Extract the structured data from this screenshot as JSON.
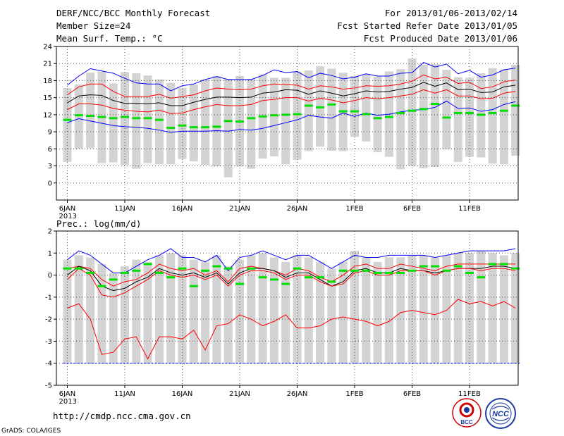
{
  "header": {
    "title": "DERF/NCC/BCC Monthly Forecast",
    "member_size": "Member Size=24",
    "variable": "Mean Surf. Temp.: °C",
    "period": "For 2013/01/06-2013/02/14",
    "started": "Fcst Started Refer Date 2013/01/05",
    "produced": "Fcst Produced Date 2013/01/06"
  },
  "footer": {
    "url": "http://cmdp.ncc.cma.gov.cn",
    "grads": "GrADS: COLA/IGES",
    "logo_bcc": "BCC",
    "logo_ncc": "NCC"
  },
  "colors": {
    "bar": "#d3d3d3",
    "max_line": "#0000ff",
    "red_line": "#ff0000",
    "mean_line": "#000000",
    "green_mark": "#00e000"
  },
  "chart_data": [
    {
      "type": "line",
      "title": "Mean Surf. Temp.: °C",
      "ylim": [
        -3,
        24
      ],
      "yticks": [
        0,
        3,
        6,
        9,
        12,
        15,
        18,
        21,
        24
      ],
      "ytick_labels": [
        "0",
        "3",
        "6",
        "9",
        "12",
        "15",
        "18",
        "21",
        "24"
      ],
      "xtick_days": [
        1,
        6,
        11,
        16,
        21,
        26,
        31,
        36
      ],
      "xtick_labels": [
        "6JAN",
        "11JAN",
        "16JAN",
        "21JAN",
        "26JAN",
        "1FEB",
        "6FEB",
        "11FEB"
      ],
      "year_label": "2013",
      "days": 40,
      "bar_low": [
        3.7,
        6,
        6.1,
        3.5,
        3.6,
        3.2,
        2.5,
        3.5,
        3.3,
        3.3,
        4.2,
        3.8,
        3.2,
        2.9,
        1,
        2.9,
        2.5,
        4.3,
        4.7,
        3.3,
        4.1,
        5.6,
        6.4,
        5.7,
        5.6,
        8.1,
        7.3,
        5.4,
        4.6,
        2.4,
        3,
        2.6,
        2.8,
        5.9,
        3.7,
        4.6,
        4.5,
        3.4,
        3.3,
        4.8
      ],
      "bar_high": [
        16.7,
        17.3,
        19.4,
        19.6,
        17.5,
        19.5,
        19.3,
        18.9,
        18.2,
        17.6,
        16.7,
        17.3,
        18.2,
        18.8,
        18.3,
        18.8,
        18.3,
        19.1,
        18.5,
        18.5,
        19.6,
        19.8,
        20.5,
        20.1,
        19.4,
        18.8,
        19.1,
        18.7,
        19.6,
        20,
        21.9,
        20.8,
        20.9,
        19.9,
        18.6,
        18.5,
        19.3,
        20.2,
        20,
        20.8
      ],
      "series": [
        {
          "name": "ens_max",
          "color": "#0000ff",
          "values": [
            17.2,
            18.8,
            20.1,
            19.7,
            19.3,
            18.4,
            17.6,
            17.4,
            17.4,
            16.2,
            17.1,
            17.4,
            18.2,
            18.7,
            18.2,
            18.2,
            18.2,
            18.9,
            19.9,
            19.4,
            19.6,
            18.5,
            19.3,
            18.9,
            18.3,
            18.6,
            19.2,
            18.8,
            18.8,
            19.3,
            19.4,
            21.2,
            20.4,
            20.9,
            19.2,
            19.8,
            18.6,
            19,
            19.9,
            20.2
          ]
        },
        {
          "name": "upper",
          "color": "#ff0000",
          "values": [
            15.5,
            16.9,
            17.4,
            17.4,
            16.1,
            15.2,
            15.2,
            15.2,
            15.6,
            14.9,
            15.2,
            15.5,
            16.2,
            16.7,
            16.5,
            16.4,
            16.5,
            17.1,
            17.4,
            17.3,
            17.2,
            16.5,
            17.1,
            16.9,
            16.5,
            16.7,
            17.1,
            17,
            17.1,
            17.4,
            17.9,
            19,
            18.3,
            18.6,
            17.5,
            17.7,
            16.6,
            16.9,
            17.8,
            18.1
          ]
        },
        {
          "name": "mean",
          "color": "#000000",
          "values": [
            14.1,
            15.3,
            15.5,
            15.4,
            14.5,
            14,
            14,
            13.9,
            14.1,
            13.6,
            13.6,
            14.2,
            14.7,
            15.1,
            15.1,
            15,
            15.1,
            15.8,
            16,
            16.4,
            16.3,
            15.6,
            16.2,
            15.8,
            15.3,
            15.7,
            16.2,
            16,
            16.1,
            16.5,
            16.8,
            17.7,
            17,
            17.6,
            16.4,
            16.5,
            15.9,
            16,
            16.9,
            17.2
          ]
        },
        {
          "name": "lower",
          "color": "#ff0000",
          "values": [
            12.9,
            13.9,
            13.9,
            13.7,
            13.1,
            12.8,
            12.6,
            12.5,
            12.8,
            12.2,
            12.3,
            12.9,
            13.4,
            13.8,
            13.6,
            13.6,
            13.8,
            14.5,
            14.7,
            15,
            15,
            14.4,
            14.9,
            14.6,
            14.1,
            14.5,
            15,
            14.8,
            15,
            15.3,
            15.6,
            16.4,
            15.8,
            16.4,
            15.3,
            15.3,
            14.8,
            14.9,
            15.8,
            16.1
          ]
        },
        {
          "name": "ens_min",
          "color": "#0000ff",
          "values": [
            10.6,
            11.3,
            10.9,
            10.5,
            10.1,
            9.9,
            9.8,
            9.6,
            9.3,
            8.9,
            9.1,
            9.1,
            9.1,
            9.2,
            9.1,
            9.4,
            9.3,
            9.6,
            10.1,
            10.6,
            11.1,
            11.9,
            11.6,
            11.4,
            12.3,
            11.7,
            12.3,
            11.9,
            12.1,
            12.5,
            12.8,
            12.9,
            13.3,
            14.4,
            13.1,
            13.2,
            12.6,
            12.9,
            13.8,
            14.3
          ]
        },
        {
          "name": "green_marks",
          "color": "#00e000",
          "values": [
            11.1,
            11.9,
            11.8,
            11.6,
            11.4,
            11.6,
            11.4,
            11.4,
            11.1,
            9.7,
            10.1,
            9.8,
            9.8,
            9.9,
            10.9,
            10.8,
            11.4,
            11.7,
            11.9,
            12,
            12.1,
            13.6,
            13.3,
            13.8,
            12.6,
            12.6,
            12.1,
            11.4,
            11.6,
            12.3,
            12.7,
            13,
            13.9,
            11.5,
            12.3,
            12.3,
            12,
            12.3,
            12.7,
            13.6
          ]
        }
      ]
    },
    {
      "type": "line",
      "title": "Prec.: log(mm/d)",
      "ylim": [
        -5,
        2
      ],
      "yticks": [
        -5,
        -4,
        -3,
        -2,
        -1,
        0,
        1,
        2
      ],
      "ytick_labels": [
        "-5",
        "-4",
        "-3",
        "-2",
        "-1",
        "0",
        "1",
        "2"
      ],
      "xtick_days": [
        1,
        6,
        11,
        16,
        21,
        26,
        31,
        36
      ],
      "xtick_labels": [
        "6JAN",
        "11JAN",
        "16JAN",
        "21JAN",
        "26JAN",
        "1FEB",
        "6FEB",
        "11FEB"
      ],
      "year_label": "2013",
      "days": 40,
      "bar_low": [
        -4,
        -4,
        -4,
        -4,
        -4,
        -4,
        -4,
        -4,
        -4,
        -4,
        -4,
        -4,
        -4,
        -4,
        -4,
        -4,
        -4,
        -4,
        -4,
        -4,
        -4,
        -4,
        -4,
        -4,
        -4,
        -4,
        -4,
        -4,
        -4,
        -4,
        -4,
        -4,
        -4,
        -4,
        -4,
        -4,
        -4,
        -4,
        -4,
        -4
      ],
      "bar_high": [
        0.7,
        0.9,
        0.8,
        0.5,
        0.1,
        0.4,
        0.7,
        0.6,
        0.9,
        1,
        0.9,
        0.7,
        0.6,
        0.9,
        0.4,
        0.7,
        0.9,
        1,
        0.8,
        0.6,
        0.9,
        0.8,
        0.6,
        0.3,
        0.6,
        1.1,
        0.8,
        0.6,
        0.8,
        0.8,
        0.9,
        0.9,
        0.8,
        0.9,
        1,
        1,
        1.1,
        1,
        0.9,
        1
      ],
      "series": [
        {
          "name": "ens_max",
          "color": "#0000ff",
          "values": [
            0.7,
            1.1,
            0.9,
            0.5,
            0.1,
            0.1,
            0.4,
            0.7,
            0.9,
            1.2,
            0.8,
            0.8,
            0.6,
            0.9,
            0.2,
            0.8,
            0.9,
            1.1,
            0.9,
            0.7,
            0.9,
            0.9,
            0.6,
            0.3,
            0.6,
            0.9,
            0.8,
            0.8,
            0.9,
            0.9,
            0.9,
            0.9,
            0.8,
            0.9,
            1,
            1.1,
            1.1,
            1.1,
            1.1,
            1.2
          ]
        },
        {
          "name": "upper",
          "color": "#ff0000",
          "values": [
            0.3,
            0.4,
            0.3,
            -0.2,
            -0.5,
            -0.3,
            -0.2,
            0.1,
            0.5,
            0.3,
            0.2,
            0.3,
            0,
            0.2,
            -0.3,
            0.3,
            0.4,
            0.3,
            0.2,
            0,
            0.3,
            0.2,
            -0.1,
            -0.3,
            0,
            0.4,
            0.5,
            0.3,
            0.3,
            0.5,
            0.4,
            0.3,
            0.2,
            0.4,
            0.5,
            0.5,
            0.5,
            0.5,
            0.5,
            0.5
          ]
        },
        {
          "name": "mean",
          "color": "#000000",
          "values": [
            0,
            0.4,
            0.2,
            -0.5,
            -0.7,
            -0.6,
            -0.3,
            -0.1,
            0.3,
            0.1,
            0,
            0.1,
            -0.1,
            0.1,
            -0.4,
            0.1,
            0.3,
            0.3,
            0.2,
            -0.1,
            0.1,
            0.1,
            -0.2,
            -0.5,
            -0.3,
            0.2,
            0.3,
            0.1,
            0.1,
            0.3,
            0.2,
            0.2,
            0.1,
            0.2,
            0.3,
            0.3,
            0.3,
            0.4,
            0.4,
            0.3
          ]
        },
        {
          "name": "lower",
          "color": "#ff0000",
          "values": [
            -0.2,
            0.3,
            0,
            -0.9,
            -1,
            -0.8,
            -0.5,
            -0.2,
            0.2,
            0,
            -0.1,
            0,
            -0.2,
            0,
            -0.5,
            0,
            0.2,
            0.2,
            0.1,
            -0.2,
            0,
            0,
            -0.3,
            -0.5,
            -0.4,
            0.1,
            0.2,
            0,
            0,
            0.2,
            0.2,
            0.2,
            0,
            0.2,
            0.3,
            0.3,
            0.2,
            0.3,
            0.3,
            0.2
          ]
        },
        {
          "name": "ens_min",
          "color": "#ff0000",
          "values": [
            -1.5,
            -1.3,
            -2,
            -3.6,
            -3.5,
            -2.9,
            -2.8,
            -3.8,
            -2.8,
            -2.8,
            -2.9,
            -2.5,
            -3.4,
            -2.3,
            -2.2,
            -1.8,
            -2,
            -2.3,
            -2.1,
            -1.8,
            -2.4,
            -2.4,
            -2.3,
            -2,
            -1.9,
            -2,
            -2.1,
            -2.3,
            -2.1,
            -1.7,
            -1.6,
            -1.7,
            -1.8,
            -1.6,
            -1.1,
            -1.3,
            -1.2,
            -1.4,
            -1.2,
            -1.5
          ]
        },
        {
          "name": "green_marks",
          "color": "#00e000",
          "values": [
            0.3,
            0.3,
            0.1,
            -0.5,
            -0.2,
            0.1,
            0.2,
            0.5,
            0.1,
            -0.1,
            0.3,
            -0.5,
            0.2,
            0.4,
            0.3,
            -0.4,
            0.3,
            -0.1,
            -0.2,
            -0.4,
            0.3,
            -0.1,
            -0.1,
            -0.3,
            0.2,
            0.2,
            0.2,
            0.1,
            0.1,
            0.1,
            0.2,
            0.4,
            0.4,
            0.2,
            0.4,
            0.1,
            -0.1,
            0.5,
            0.5,
            0.3
          ]
        }
      ]
    }
  ]
}
